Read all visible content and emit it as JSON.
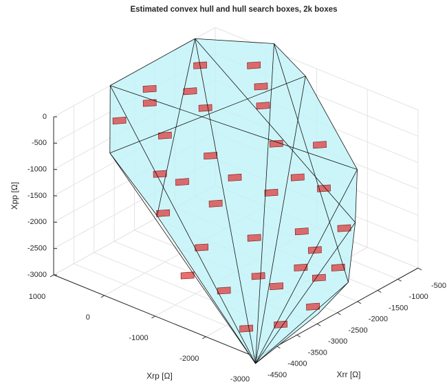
{
  "chart_data": {
    "type": "hull3d",
    "title": "Estimated convex hull and hull search boxes, 2k boxes",
    "xlabel": "Xrr [Ω]",
    "ylabel": "Xrp [Ω]",
    "zlabel": "Xpp [Ω]",
    "xlim": [
      -4500,
      -500
    ],
    "xticks": [
      -4500,
      -4000,
      -3500,
      -3000,
      -2500,
      -2000,
      -1500,
      -1000,
      -500
    ],
    "ylim": [
      -3000,
      1000
    ],
    "yticks": [
      -3000,
      -2000,
      -1000,
      0,
      1000
    ],
    "zlim": [
      -3000,
      0
    ],
    "zticks": [
      -3000,
      -2500,
      -2000,
      -1500,
      -1000,
      -500,
      0
    ],
    "grid": true,
    "hull": {
      "color": "#bff3f7",
      "xrr": [
        -3100,
        -1000,
        -300,
        -400,
        -500,
        -800,
        -1600,
        -2600,
        -4400,
        -4200,
        -4300
      ],
      "xrp": [
        1000,
        1000,
        0,
        -700,
        -1800,
        -2000,
        -2500,
        -2700,
        -2900,
        -800,
        50
      ],
      "z": [
        0,
        0,
        0,
        -300,
        -1600,
        -2400,
        -3000,
        -3100,
        -3200,
        -1300,
        -400
      ]
    },
    "boxes": {
      "color": "#e03030",
      "xrr": [
        -3500,
        -2500,
        -1500,
        -800,
        -3000,
        -2000,
        -1200,
        -3500,
        -2500,
        -1500,
        -800,
        -3800,
        -3000,
        -2000,
        -1200,
        -3600,
        -2800,
        -2000,
        -1200,
        -3800,
        -3000,
        -2200,
        -1600,
        -4000,
        -3400,
        -2600,
        -3000,
        -2000,
        -1000,
        -3200,
        -2400,
        -1600,
        -4200,
        -3200,
        -2400,
        -1800
      ],
      "xrp": [
        500,
        700,
        500,
        0,
        0,
        0,
        -500,
        -300,
        -500,
        -1000,
        -1300,
        -600,
        -1000,
        -1300,
        -1700,
        -1200,
        -1600,
        -1900,
        -2100,
        -1800,
        -2200,
        -2400,
        -2300,
        -2400,
        -2600,
        -2600,
        300,
        300,
        -300,
        -500,
        -900,
        -1500,
        -1400,
        -2000,
        -2200,
        -2000
      ],
      "z": [
        -300,
        -200,
        -100,
        -200,
        -600,
        -500,
        -600,
        -1000,
        -1000,
        -1000,
        -1200,
        -1500,
        -1500,
        -1600,
        -1700,
        -2000,
        -2000,
        -2100,
        -2300,
        -2500,
        -2600,
        -2700,
        -2800,
        -2900,
        -3000,
        -3000,
        -100,
        -300,
        -400,
        -1200,
        -1300,
        -1400,
        -2200,
        -2400,
        -2500,
        -2500
      ]
    }
  }
}
